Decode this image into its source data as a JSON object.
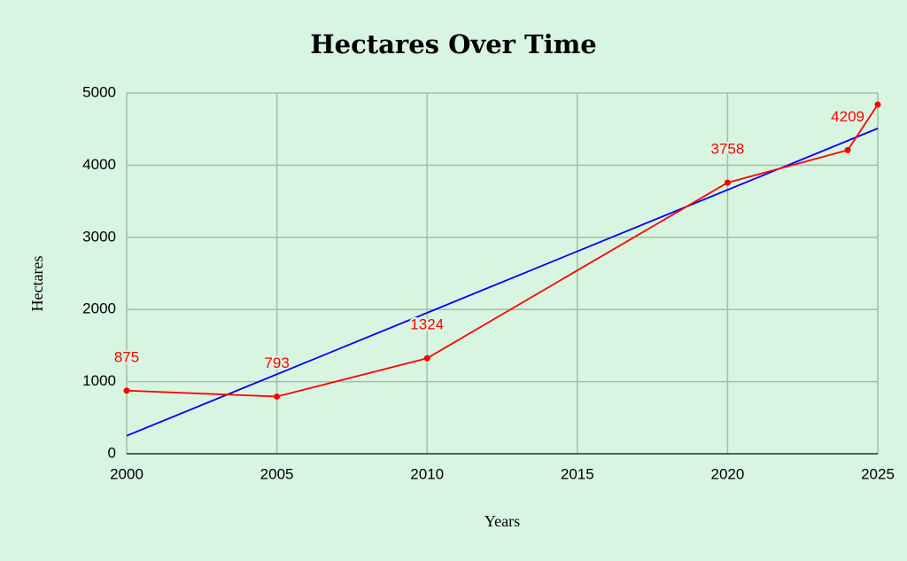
{
  "chart_data": {
    "type": "line",
    "title": "Hectares Over Time",
    "x_label": "Years",
    "y_label": "Hectares",
    "series": [
      {
        "color": "#ff0000",
        "markers": true,
        "x": [
          2000,
          2005,
          2010,
          2020,
          2024,
          2025
        ],
        "values": [
          875,
          793,
          1324,
          3758,
          4209,
          4840
        ],
        "value_labels": [
          "875",
          "793",
          "1324",
          "3758",
          "4209",
          null
        ]
      },
      {
        "color": "#0000ff",
        "markers": false,
        "x": [
          2000,
          2025
        ],
        "values": [
          250,
          4510
        ]
      }
    ],
    "xlim": [
      2000,
      2025
    ],
    "xticks": [
      2000,
      2005,
      2010,
      2015,
      2020,
      2025
    ],
    "ylim": [
      0,
      5000
    ],
    "yticks": [
      0,
      1000,
      2000,
      3000,
      4000,
      5000
    ],
    "grid": true
  }
}
